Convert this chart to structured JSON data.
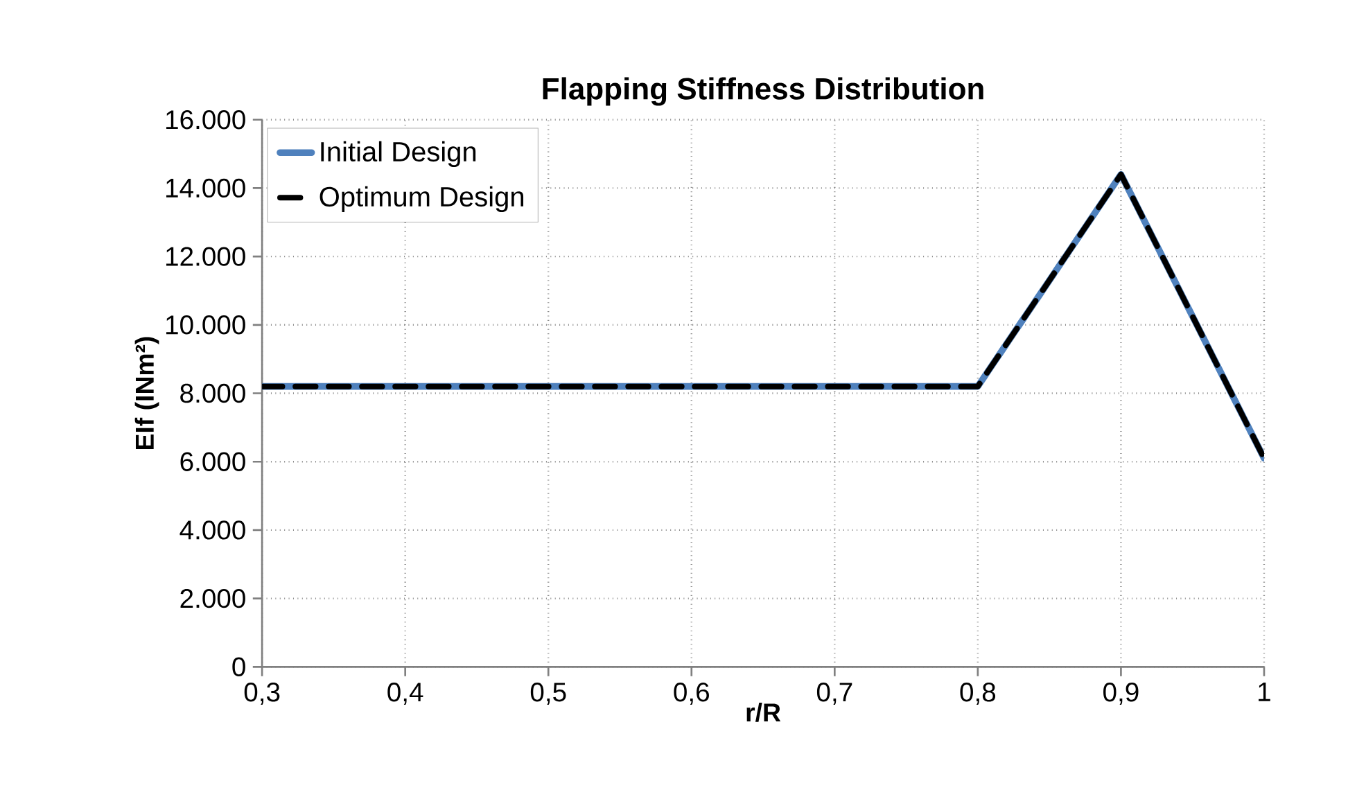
{
  "chart_data": {
    "type": "line",
    "title": "Flapping Stiffness Distribution",
    "xlabel": "r/R",
    "ylabel": "EIf (INm²)",
    "x": [
      0.3,
      0.4,
      0.5,
      0.6,
      0.7,
      0.8,
      0.9,
      1
    ],
    "series": [
      {
        "name": "Initial Design",
        "color": "#4f81bd",
        "line_style": "solid",
        "values": [
          8200,
          8200,
          8200,
          8200,
          8200,
          8200,
          14400,
          6100
        ]
      },
      {
        "name": "Optimum Design",
        "color": "#000000",
        "line_style": "dashed",
        "values": [
          8200,
          8200,
          8200,
          8200,
          8200,
          8200,
          14400,
          6100
        ]
      }
    ],
    "xlim": [
      0.3,
      1
    ],
    "ylim": [
      0,
      16000
    ],
    "xticks": [
      {
        "value": 0.3,
        "label": "0,3"
      },
      {
        "value": 0.4,
        "label": "0,4"
      },
      {
        "value": 0.5,
        "label": "0,5"
      },
      {
        "value": 0.6,
        "label": "0,6"
      },
      {
        "value": 0.7,
        "label": "0,7"
      },
      {
        "value": 0.8,
        "label": "0,8"
      },
      {
        "value": 0.9,
        "label": "0,9"
      },
      1
    ],
    "yticks": [
      0,
      {
        "value": 2000,
        "label": "2.000"
      },
      {
        "value": 4000,
        "label": "4.000"
      },
      {
        "value": 6000,
        "label": "6.000"
      },
      {
        "value": 8000,
        "label": "8.000"
      },
      {
        "value": 10000,
        "label": "10.000"
      },
      {
        "value": 12000,
        "label": "12.000"
      },
      {
        "value": 14000,
        "label": "14.000"
      },
      {
        "value": 16000,
        "label": "16.000"
      }
    ],
    "grid": true,
    "legend": "top left",
    "marker": "none"
  }
}
